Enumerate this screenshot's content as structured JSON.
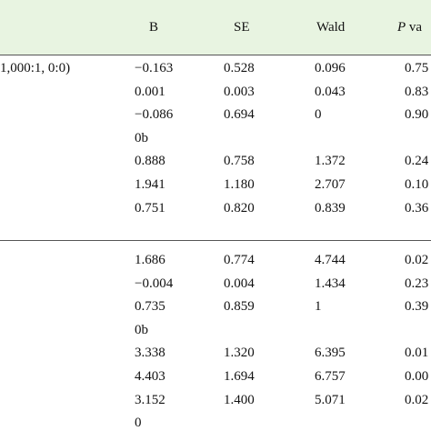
{
  "header": {
    "columns": [
      "B",
      "SE",
      "Wald"
    ],
    "p_italic": "P",
    "p_rest": "va"
  },
  "sections": [
    {
      "label": "1,000:1, 0:0)",
      "rows": [
        [
          "−0.163",
          "0.528",
          "0.096",
          "0.75"
        ],
        [
          "0.001",
          "0.003",
          "0.043",
          "0.83"
        ],
        [
          "−0.086",
          "0.694",
          "0",
          "0.90"
        ],
        [
          "0b"
        ],
        [
          "0.888",
          "0.758",
          "1.372",
          "0.24"
        ],
        [
          "1.941",
          "1.180",
          "2.707",
          "0.10"
        ],
        [
          "0.751",
          "0.820",
          "0.839",
          "0.36"
        ]
      ]
    },
    {
      "rows": [
        [
          "1.686",
          "0.774",
          "4.744",
          "0.02"
        ],
        [
          "−0.004",
          "0.004",
          "1.434",
          "0.23"
        ],
        [
          "0.735",
          "0.859",
          "1",
          "0.39"
        ],
        [
          "0b"
        ],
        [
          "3.338",
          "1.320",
          "6.395",
          "0.01"
        ],
        [
          "4.403",
          "1.694",
          "6.757",
          "0.00"
        ],
        [
          "3.152",
          "1.400",
          "5.071",
          "0.02"
        ],
        [
          "0"
        ]
      ]
    }
  ]
}
